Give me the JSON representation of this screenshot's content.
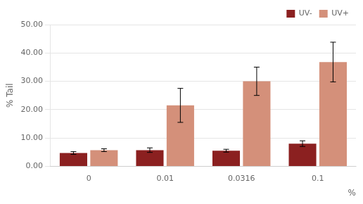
{
  "chart_data": {
    "type": "bar",
    "categories": [
      "0",
      "0.01",
      "0.0316",
      "0.1"
    ],
    "series": [
      {
        "name": "UV-",
        "color": "#8B2020",
        "values": [
          4.7,
          5.7,
          5.5,
          8.0
        ],
        "errors": [
          0.5,
          0.8,
          0.5,
          1.0
        ]
      },
      {
        "name": "UV+",
        "color": "#D4907A",
        "values": [
          5.7,
          21.5,
          30.0,
          36.8
        ],
        "errors": [
          0.5,
          6.0,
          5.0,
          7.0
        ]
      }
    ],
    "xlabel": "%",
    "ylabel": "% Tail",
    "ylim": [
      0,
      50
    ],
    "yticks": [
      {
        "value": 0,
        "label": "0.00"
      },
      {
        "value": 10,
        "label": "10.00"
      },
      {
        "value": 20,
        "label": "20.00"
      },
      {
        "value": 30,
        "label": "30.00"
      },
      {
        "value": 40,
        "label": "40.00"
      },
      {
        "value": 50,
        "label": "50.00"
      }
    ],
    "grid": true,
    "legend": "upper right"
  }
}
